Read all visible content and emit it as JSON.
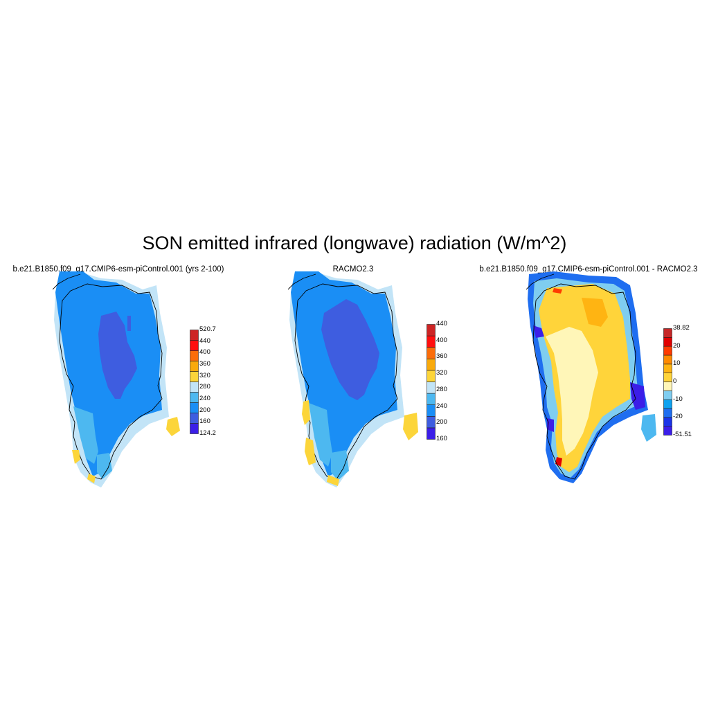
{
  "title": "SON emitted infrared (longwave) radiation (W/m^2)",
  "panels": [
    {
      "title": "b.e21.B1850.f09_g17.CMIP6-esm-piControl.001 (yrs 2-100)",
      "colorbar": {
        "colors": [
          "#3b1ee8",
          "#3e5de0",
          "#1a8ef5",
          "#4db8f0",
          "#c2e4f7",
          "#fcd53a",
          "#f9aa0c",
          "#fb6d0a",
          "#ff0f0f",
          "#cd2525"
        ],
        "labels": [
          "124.2",
          "160",
          "200",
          "240",
          "280",
          "320",
          "360",
          "400",
          "440",
          "520.7"
        ]
      }
    },
    {
      "title": "RACMO2.3",
      "colorbar": {
        "colors": [
          "#3b1ee8",
          "#3e5de0",
          "#1a8ef5",
          "#4db8f0",
          "#c2e4f7",
          "#fcd53a",
          "#f9aa0c",
          "#fb6d0a",
          "#ff0f0f",
          "#cd2525"
        ],
        "labels": [
          "160",
          "200",
          "240",
          "280",
          "320",
          "360",
          "400",
          "440"
        ]
      }
    },
    {
      "title": "b.e21.B1850.f09_g17.CMIP6-esm-piControl.001 - RACMO2.3",
      "colorbar": {
        "colors": [
          "#3b1ee8",
          "#1b34e8",
          "#1f6ef0",
          "#0ea2f0",
          "#7fcdf0",
          "#fff6b8",
          "#ffd43a",
          "#ffb412",
          "#ff8a00",
          "#ff3b00",
          "#e00000",
          "#c62828"
        ],
        "labels": [
          "-51.51",
          "-20",
          "-10",
          "0",
          "10",
          "20",
          "38.82"
        ]
      }
    }
  ]
}
